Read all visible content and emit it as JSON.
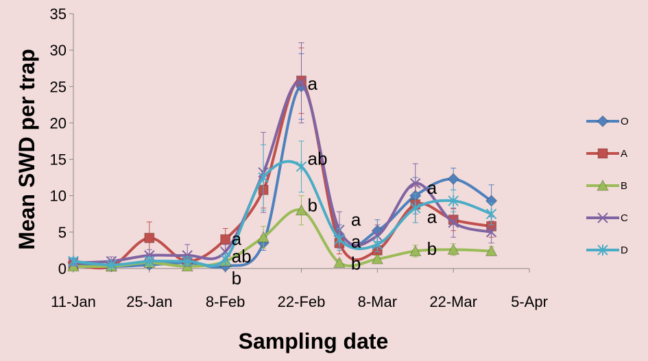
{
  "chart_data": {
    "type": "line",
    "title": "",
    "xlabel": "Sampling date",
    "ylabel": "Mean SWD per trap",
    "ylim": [
      0,
      35
    ],
    "y_ticks": [
      0,
      5,
      10,
      15,
      20,
      25,
      30,
      35
    ],
    "x_ticks": [
      "11-Jan",
      "25-Jan",
      "8-Feb",
      "22-Feb",
      "8-Mar",
      "22-Mar",
      "5-Apr"
    ],
    "x_tick_days": [
      0,
      14,
      28,
      42,
      56,
      70,
      84
    ],
    "legend_position": "right",
    "series": [
      {
        "name": "O",
        "color": "#4f81bd",
        "marker": "diamond",
        "x": [
          "11-Jan",
          "18-Jan",
          "25-Jan",
          "1-Feb",
          "8-Feb",
          "15-Feb",
          "22-Feb",
          "29-Feb",
          "7-Mar",
          "14-Mar",
          "21-Mar",
          "28-Mar"
        ],
        "values": [
          0.8,
          0.3,
          0.5,
          0.8,
          0.3,
          3.5,
          25.0,
          4.5,
          5.2,
          10.0,
          12.3,
          9.3
        ],
        "errors": [
          0.4,
          0.3,
          0.4,
          0.5,
          0.3,
          1.0,
          4.5,
          1.5,
          1.5,
          2.5,
          1.5,
          2.2
        ]
      },
      {
        "name": "A",
        "color": "#c0504d",
        "marker": "square",
        "x": [
          "11-Jan",
          "18-Jan",
          "25-Jan",
          "1-Feb",
          "8-Feb",
          "15-Feb",
          "22-Feb",
          "29-Feb",
          "7-Mar",
          "14-Mar",
          "21-Mar",
          "28-Mar"
        ],
        "values": [
          0.5,
          0.3,
          4.2,
          1.0,
          4.0,
          10.8,
          25.8,
          3.5,
          2.5,
          8.8,
          6.7,
          5.8
        ],
        "errors": [
          0.3,
          0.2,
          2.2,
          0.8,
          1.5,
          2.5,
          4.5,
          1.5,
          1.0,
          2.5,
          1.5,
          1.5
        ]
      },
      {
        "name": "B",
        "color": "#9bbb59",
        "marker": "triangle",
        "x": [
          "11-Jan",
          "18-Jan",
          "25-Jan",
          "1-Feb",
          "8-Feb",
          "15-Feb",
          "22-Feb",
          "29-Feb",
          "7-Mar",
          "14-Mar",
          "21-Mar",
          "28-Mar"
        ],
        "values": [
          0.3,
          0.3,
          0.8,
          0.3,
          1.0,
          4.3,
          8.0,
          0.8,
          1.3,
          2.4,
          2.6,
          2.4
        ],
        "errors": [
          0.2,
          0.2,
          0.5,
          0.2,
          0.5,
          1.5,
          2.0,
          0.4,
          0.5,
          0.8,
          0.8,
          0.6
        ]
      },
      {
        "name": "C",
        "color": "#8064a2",
        "marker": "x",
        "x": [
          "11-Jan",
          "18-Jan",
          "25-Jan",
          "1-Feb",
          "8-Feb",
          "15-Feb",
          "22-Feb",
          "29-Feb",
          "7-Mar",
          "14-Mar",
          "21-Mar",
          "28-Mar"
        ],
        "values": [
          0.8,
          1.0,
          1.8,
          1.8,
          2.3,
          13.2,
          25.5,
          5.3,
          4.5,
          11.7,
          6.3,
          5.0
        ],
        "errors": [
          0.4,
          0.6,
          0.8,
          1.5,
          1.0,
          5.5,
          5.5,
          2.5,
          1.5,
          2.7,
          2.0,
          1.5
        ]
      },
      {
        "name": "D",
        "color": "#4bacc6",
        "marker": "asterisk",
        "x": [
          "11-Jan",
          "18-Jan",
          "25-Jan",
          "1-Feb",
          "8-Feb",
          "15-Feb",
          "22-Feb",
          "29-Feb",
          "7-Mar",
          "14-Mar",
          "21-Mar",
          "28-Mar"
        ],
        "values": [
          1.0,
          0.5,
          1.0,
          1.0,
          1.3,
          12.5,
          14.0,
          4.0,
          3.3,
          8.3,
          9.3,
          7.5
        ],
        "errors": [
          0.5,
          0.3,
          0.6,
          0.6,
          0.8,
          4.5,
          3.5,
          1.5,
          1.0,
          2.0,
          1.5,
          1.5
        ]
      }
    ],
    "annotations": [
      {
        "text": "a",
        "x": "22-Feb",
        "y": 25.5
      },
      {
        "text": "ab",
        "x": "22-Feb",
        "y": 15.2
      },
      {
        "text": "b",
        "x": "22-Feb",
        "y": 8.8
      },
      {
        "text": "a",
        "x": "8-Feb",
        "y": 4.2
      },
      {
        "text": "ab",
        "x": "8-Feb",
        "y": 1.8
      },
      {
        "text": "b",
        "x": "8-Feb",
        "y": -1.2
      },
      {
        "text": "a",
        "x": "1-Mar",
        "y": 6.8
      },
      {
        "text": "a",
        "x": "1-Mar",
        "y": 3.8
      },
      {
        "text": "b",
        "x": "1-Mar",
        "y": 0.8
      },
      {
        "text": "a",
        "x": "15-Mar",
        "y": 11.2
      },
      {
        "text": "a",
        "x": "15-Mar",
        "y": 7.2
      },
      {
        "text": "b",
        "x": "15-Mar",
        "y": 2.8
      }
    ]
  }
}
